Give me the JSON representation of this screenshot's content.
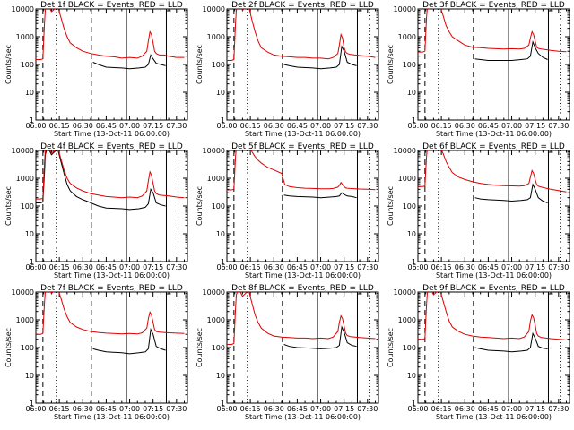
{
  "colors": {
    "events": "#000000",
    "lld": "#e00000",
    "background": "#ffffff"
  },
  "shared": {
    "xlabel": "Start Time (13-Oct-11 06:00:00)",
    "ylabel": "Counts/sec",
    "x_ticks": [
      "06:00",
      "06:15",
      "06:30",
      "06:45",
      "07:00",
      "07:15",
      "07:30"
    ],
    "y_ticks": [
      "1",
      "10",
      "100",
      "1000",
      "10000"
    ],
    "xlim_minutes": [
      0,
      97
    ],
    "ylim": [
      1,
      10000
    ],
    "yscale": "log",
    "marker_lines": [
      {
        "t": 4.5,
        "style": "dashed"
      },
      {
        "t": 13,
        "style": "dotted"
      },
      {
        "t": 35.5,
        "style": "dashed"
      },
      {
        "t": 58,
        "style": "solid"
      },
      {
        "t": 83.5,
        "style": "solid"
      },
      {
        "t": 91,
        "style": "dotted"
      }
    ]
  },
  "chart_data": [
    {
      "type": "line",
      "title": "Det 1f BLACK = Events, RED = LLD",
      "series": [
        {
          "name": "Events",
          "x": [
            5,
            8,
            10,
            14,
            18,
            24,
            30,
            36,
            36.5,
            40,
            45,
            55,
            60,
            66,
            70,
            72,
            73.5,
            75,
            77,
            80,
            83
          ],
          "y": [
            null,
            null,
            null,
            null,
            null,
            null,
            null,
            null,
            120,
            100,
            80,
            75,
            70,
            75,
            80,
            100,
            220,
            160,
            110,
            100,
            90
          ]
        },
        {
          "name": "LLD",
          "x": [
            0,
            3,
            4.5,
            5.5,
            6,
            7,
            8,
            9,
            10,
            12,
            14,
            16,
            18,
            20,
            22,
            26,
            30,
            35,
            40,
            45,
            50,
            55,
            60,
            65,
            68,
            71,
            72,
            73,
            74,
            75,
            76,
            77,
            79,
            82,
            85,
            90,
            95
          ],
          "y": [
            150,
            150,
            160,
            3000,
            9000,
            12000,
            12000,
            10000,
            8000,
            10000,
            12000,
            5000,
            2000,
            1000,
            600,
            400,
            300,
            250,
            220,
            200,
            190,
            170,
            180,
            170,
            200,
            300,
            700,
            1500,
            1200,
            600,
            300,
            250,
            220,
            220,
            200,
            180,
            180
          ]
        }
      ]
    },
    {
      "type": "line",
      "title": "Det 2f BLACK = Events, RED = LLD",
      "series": [
        {
          "name": "Events",
          "x": [
            36.5,
            40,
            45,
            55,
            60,
            66,
            70,
            72,
            73.5,
            75,
            77,
            80,
            83
          ],
          "y": [
            100,
            90,
            80,
            75,
            70,
            75,
            80,
            100,
            450,
            300,
            120,
            100,
            90
          ]
        },
        {
          "name": "LLD",
          "x": [
            0,
            3,
            4.5,
            5.5,
            6,
            7,
            8,
            9,
            10,
            12,
            14,
            16,
            18,
            20,
            22,
            26,
            30,
            35,
            40,
            45,
            50,
            55,
            60,
            65,
            68,
            71,
            72,
            73,
            74,
            75,
            76,
            77,
            79,
            82,
            85,
            90,
            95
          ],
          "y": [
            140,
            140,
            150,
            3000,
            9000,
            12000,
            12000,
            11000,
            9000,
            11000,
            12000,
            4000,
            1500,
            700,
            400,
            280,
            220,
            200,
            190,
            180,
            180,
            170,
            170,
            160,
            180,
            250,
            500,
            1200,
            900,
            400,
            280,
            250,
            230,
            220,
            210,
            200,
            180
          ]
        }
      ]
    },
    {
      "type": "line",
      "title": "Det 3f BLACK = Events, RED = LLD",
      "series": [
        {
          "name": "Events",
          "x": [
            36.5,
            40,
            45,
            55,
            60,
            66,
            70,
            72,
            73.5,
            75,
            77,
            80,
            83
          ],
          "y": [
            160,
            150,
            140,
            140,
            140,
            150,
            160,
            200,
            650,
            400,
            250,
            180,
            150
          ]
        },
        {
          "name": "LLD",
          "x": [
            0,
            3,
            4.5,
            5.5,
            6,
            7,
            8,
            9,
            10,
            12,
            14,
            16,
            18,
            20,
            22,
            26,
            30,
            35,
            40,
            45,
            50,
            55,
            60,
            65,
            68,
            71,
            72,
            73,
            74,
            75,
            76,
            77,
            79,
            82,
            85,
            90,
            95
          ],
          "y": [
            280,
            280,
            300,
            5000,
            11000,
            13000,
            13000,
            12000,
            11000,
            12000,
            13000,
            6000,
            2500,
            1500,
            1000,
            700,
            500,
            420,
            400,
            380,
            370,
            360,
            370,
            360,
            380,
            500,
            900,
            1500,
            1200,
            700,
            420,
            380,
            360,
            340,
            320,
            300,
            290
          ]
        }
      ]
    },
    {
      "type": "line",
      "title": "Det 4f BLACK = Events, RED = LLD",
      "series": [
        {
          "name": "Events",
          "x": [
            0,
            3,
            4.5,
            5.5,
            6,
            7,
            8,
            9,
            10,
            12,
            14,
            16,
            18,
            20,
            22,
            26,
            30,
            34,
            36.5,
            40,
            45,
            55,
            60,
            66,
            70,
            72,
            73.5,
            75,
            77,
            80,
            83
          ],
          "y": [
            130,
            130,
            140,
            1500,
            7000,
            11000,
            11000,
            9000,
            7000,
            9000,
            11000,
            4000,
            1500,
            600,
            350,
            220,
            170,
            140,
            120,
            100,
            85,
            80,
            75,
            80,
            90,
            120,
            400,
            300,
            130,
            110,
            100
          ]
        },
        {
          "name": "LLD",
          "x": [
            0,
            3,
            4.5,
            5.5,
            6,
            7,
            8,
            9,
            10,
            12,
            14,
            16,
            18,
            20,
            22,
            26,
            30,
            35,
            40,
            45,
            50,
            55,
            60,
            65,
            68,
            71,
            72,
            73,
            74,
            75,
            76,
            77,
            79,
            82,
            85,
            90,
            95
          ],
          "y": [
            180,
            180,
            190,
            3500,
            10000,
            12000,
            12000,
            10000,
            8000,
            10000,
            12000,
            5000,
            2000,
            1000,
            650,
            450,
            350,
            280,
            250,
            220,
            210,
            200,
            210,
            200,
            230,
            350,
            800,
            1700,
            1300,
            650,
            350,
            280,
            250,
            240,
            230,
            210,
            200
          ]
        }
      ]
    },
    {
      "type": "line",
      "title": "Det 5f BLACK = Events, RED = LLD",
      "series": [
        {
          "name": "Events",
          "x": [
            36.5,
            40,
            45,
            55,
            60,
            66,
            70,
            72,
            73.5,
            75,
            77,
            80,
            83
          ],
          "y": [
            250,
            230,
            220,
            210,
            200,
            210,
            220,
            230,
            300,
            260,
            230,
            220,
            200
          ]
        },
        {
          "name": "LLD",
          "x": [
            0,
            3,
            4.5,
            5.5,
            6,
            7,
            8,
            9,
            10,
            12,
            14,
            16,
            18,
            20,
            22,
            26,
            30,
            35,
            37,
            40,
            45,
            50,
            55,
            60,
            65,
            68,
            71,
            72,
            73,
            74,
            75,
            76,
            77,
            79,
            82,
            85,
            90,
            95
          ],
          "y": [
            380,
            380,
            400,
            6000,
            12000,
            14000,
            14000,
            13000,
            12000,
            13000,
            14000,
            9000,
            6000,
            4500,
            3500,
            2500,
            2000,
            1500,
            600,
            500,
            460,
            440,
            430,
            420,
            420,
            430,
            480,
            550,
            700,
            600,
            500,
            450,
            440,
            430,
            420,
            410,
            400,
            390
          ]
        }
      ]
    },
    {
      "type": "line",
      "title": "Det 6f BLACK = Events, RED = LLD",
      "series": [
        {
          "name": "Events",
          "x": [
            36.5,
            40,
            45,
            55,
            60,
            66,
            70,
            72,
            73.5,
            75,
            77,
            80,
            83
          ],
          "y": [
            200,
            180,
            170,
            160,
            150,
            160,
            170,
            200,
            600,
            400,
            200,
            150,
            130
          ]
        },
        {
          "name": "LLD",
          "x": [
            0,
            3,
            4.5,
            5.5,
            6,
            7,
            8,
            9,
            10,
            12,
            14,
            16,
            18,
            20,
            22,
            26,
            30,
            35,
            40,
            45,
            50,
            55,
            60,
            65,
            68,
            71,
            72,
            73,
            74,
            75,
            76,
            77,
            79,
            82,
            85,
            90,
            95
          ],
          "y": [
            500,
            500,
            520,
            6000,
            12000,
            14000,
            14000,
            13000,
            11000,
            13000,
            14000,
            8000,
            4000,
            2500,
            1600,
            1100,
            900,
            750,
            650,
            600,
            560,
            540,
            530,
            520,
            540,
            650,
            1100,
            1900,
            1500,
            900,
            600,
            520,
            480,
            440,
            400,
            360,
            320
          ]
        }
      ]
    },
    {
      "type": "line",
      "title": "Det 7f BLACK = Events, RED = LLD",
      "series": [
        {
          "name": "Events",
          "x": [
            36.5,
            40,
            45,
            55,
            60,
            66,
            70,
            72,
            73.5,
            75,
            77,
            80,
            83
          ],
          "y": [
            90,
            80,
            70,
            65,
            60,
            65,
            70,
            90,
            450,
            300,
            110,
            90,
            80
          ]
        },
        {
          "name": "LLD",
          "x": [
            0,
            3,
            4.5,
            5.5,
            6,
            7,
            8,
            9,
            10,
            12,
            14,
            16,
            18,
            20,
            22,
            26,
            30,
            35,
            40,
            45,
            50,
            55,
            60,
            65,
            68,
            71,
            72,
            73,
            74,
            75,
            76,
            77,
            79,
            82,
            85,
            90,
            95
          ],
          "y": [
            300,
            300,
            320,
            4000,
            10000,
            13000,
            13000,
            11000,
            9000,
            11000,
            13000,
            6000,
            2500,
            1300,
            800,
            550,
            450,
            380,
            350,
            330,
            320,
            310,
            320,
            310,
            340,
            500,
            1100,
            1900,
            1500,
            800,
            450,
            380,
            360,
            350,
            340,
            330,
            320
          ]
        }
      ]
    },
    {
      "type": "line",
      "title": "Det 8f BLACK = Events, RED = LLD",
      "series": [
        {
          "name": "Events",
          "x": [
            36.5,
            40,
            45,
            55,
            60,
            66,
            70,
            72,
            73.5,
            75,
            77,
            80,
            83
          ],
          "y": [
            130,
            110,
            100,
            95,
            90,
            95,
            100,
            120,
            550,
            350,
            150,
            120,
            110
          ]
        },
        {
          "name": "LLD",
          "x": [
            0,
            3,
            4.5,
            5.5,
            6,
            7,
            8,
            9,
            10,
            12,
            14,
            16,
            18,
            20,
            22,
            26,
            30,
            35,
            40,
            45,
            50,
            55,
            60,
            65,
            68,
            71,
            72,
            73,
            74,
            75,
            76,
            77,
            79,
            82,
            85,
            90,
            95
          ],
          "y": [
            130,
            130,
            140,
            2500,
            8000,
            11000,
            11000,
            9000,
            7000,
            9000,
            11000,
            4000,
            1500,
            800,
            500,
            330,
            260,
            240,
            230,
            220,
            220,
            210,
            220,
            210,
            240,
            380,
            800,
            1400,
            1100,
            600,
            330,
            270,
            250,
            240,
            230,
            220,
            210
          ]
        }
      ]
    },
    {
      "type": "line",
      "title": "Det 9f BLACK = Events, RED = LLD",
      "series": [
        {
          "name": "Events",
          "x": [
            36.5,
            40,
            45,
            55,
            60,
            66,
            70,
            72,
            73.5,
            75,
            77,
            80,
            83
          ],
          "y": [
            100,
            90,
            80,
            75,
            70,
            75,
            80,
            100,
            320,
            220,
            110,
            95,
            90
          ]
        },
        {
          "name": "LLD",
          "x": [
            0,
            3,
            4.5,
            5.5,
            6,
            7,
            8,
            9,
            10,
            12,
            14,
            16,
            18,
            20,
            22,
            26,
            30,
            35,
            40,
            45,
            50,
            55,
            60,
            65,
            68,
            71,
            72,
            73,
            74,
            75,
            76,
            77,
            79,
            82,
            85,
            90,
            95
          ],
          "y": [
            200,
            200,
            210,
            3500,
            9000,
            12000,
            12000,
            10000,
            8000,
            10000,
            12000,
            5000,
            2000,
            900,
            550,
            380,
            300,
            260,
            240,
            230,
            220,
            210,
            220,
            210,
            240,
            380,
            900,
            1500,
            1200,
            650,
            320,
            260,
            230,
            220,
            210,
            200,
            190
          ]
        }
      ]
    }
  ]
}
